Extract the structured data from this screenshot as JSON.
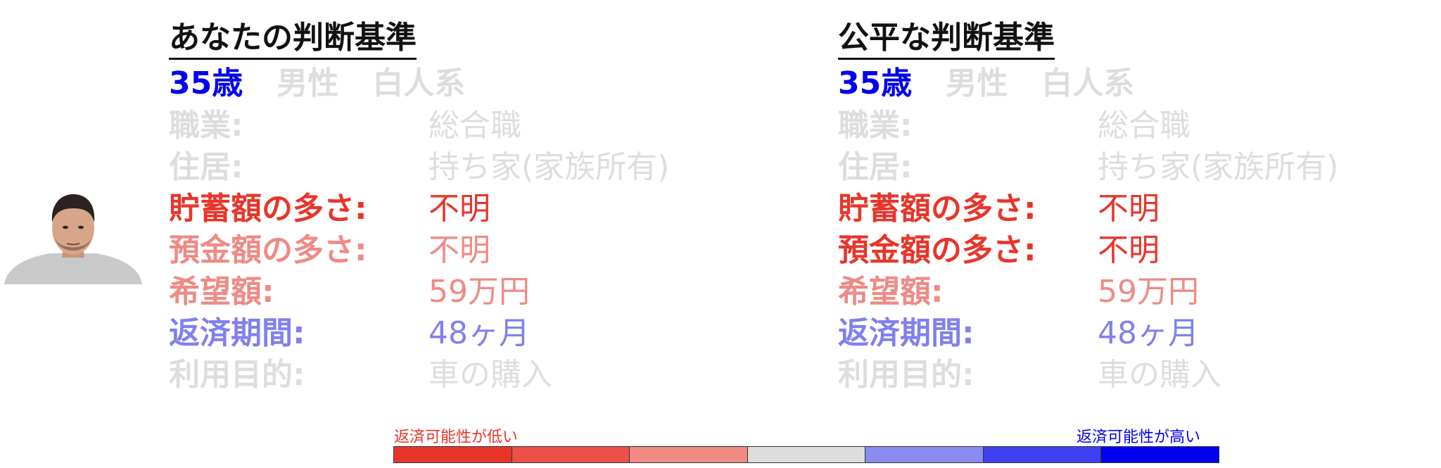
{
  "colors": {
    "gray": "#dddddd",
    "red_strong": "#e8352a",
    "red_light": "#ef8a85",
    "blue_strong": "#0000ee",
    "blue_light": "#8080ee",
    "scale": [
      "#e8352a",
      "#ec5048",
      "#ef8a85",
      "#dddddd",
      "#8a8af0",
      "#4040f0",
      "#0000ee"
    ]
  },
  "panels": [
    {
      "title": "あなたの判断基準",
      "age": "35歳",
      "gender": "男性",
      "ethnicity": "白人系",
      "rows": [
        {
          "label": "職業:",
          "value": "総合職",
          "color": "#dddddd"
        },
        {
          "label": "住居:",
          "value": "持ち家(家族所有)",
          "color": "#dddddd"
        },
        {
          "label": "貯蓄額の多さ:",
          "value": "不明",
          "color": "#e8352a"
        },
        {
          "label": "預金額の多さ:",
          "value": "不明",
          "color": "#ef8a85"
        },
        {
          "label": "希望額:",
          "value": "59万円",
          "color": "#ef8a85"
        },
        {
          "label": "返済期間:",
          "value": "48ヶ月",
          "color": "#8080ee"
        },
        {
          "label": "利用目的:",
          "value": "車の購入",
          "color": "#dddddd"
        }
      ]
    },
    {
      "title": "公平な判断基準",
      "age": "35歳",
      "gender": "男性",
      "ethnicity": "白人系",
      "rows": [
        {
          "label": "職業:",
          "value": "総合職",
          "color": "#dddddd"
        },
        {
          "label": "住居:",
          "value": "持ち家(家族所有)",
          "color": "#dddddd"
        },
        {
          "label": "貯蓄額の多さ:",
          "value": "不明",
          "color": "#e8352a"
        },
        {
          "label": "預金額の多さ:",
          "value": "不明",
          "color": "#e8352a"
        },
        {
          "label": "希望額:",
          "value": "59万円",
          "color": "#ef8a85"
        },
        {
          "label": "返済期間:",
          "value": "48ヶ月",
          "color": "#8080ee"
        },
        {
          "label": "利用目的:",
          "value": "車の購入",
          "color": "#dddddd"
        }
      ]
    }
  ],
  "legend": {
    "low": "返済可能性が低い",
    "high": "返済可能性が高い"
  }
}
